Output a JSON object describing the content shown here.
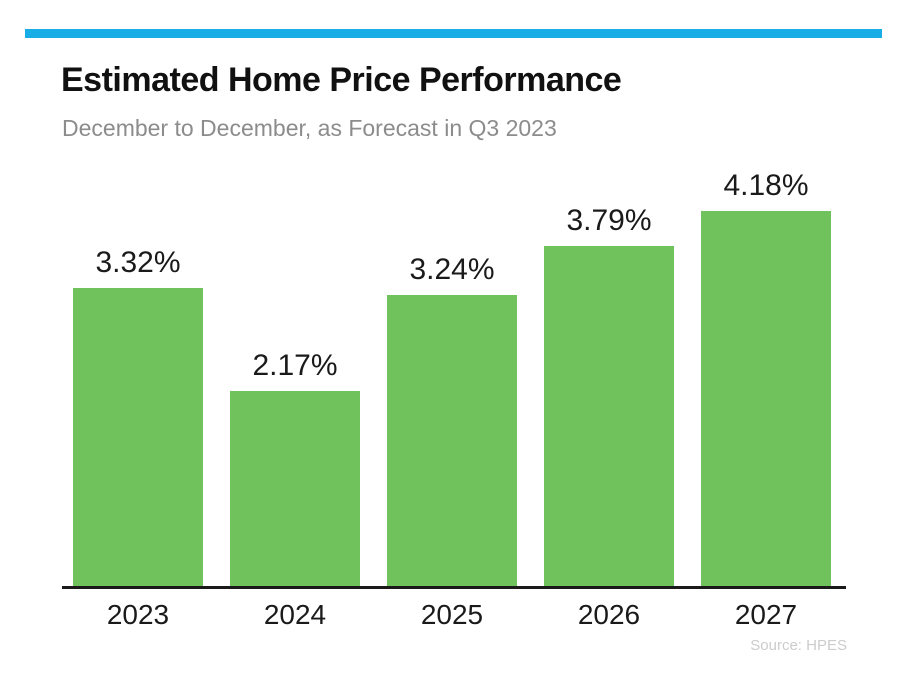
{
  "header": {
    "title": "Estimated Home Price Performance",
    "subtitle": "December to December, as Forecast in Q3 2023"
  },
  "chart_data": {
    "type": "bar",
    "categories": [
      "2023",
      "2024",
      "2025",
      "2026",
      "2027"
    ],
    "values": [
      3.32,
      2.17,
      3.24,
      3.79,
      4.18
    ],
    "value_labels": [
      "3.32%",
      "2.17%",
      "3.24%",
      "3.79%",
      "4.18%"
    ],
    "title": "Estimated Home Price Performance",
    "subtitle": "December to December, as Forecast in Q3 2023",
    "xlabel": "",
    "ylabel": "",
    "ylim": [
      0,
      4.6
    ],
    "grid": false,
    "legend": "none",
    "data_labels": true,
    "baseline": 0
  },
  "footer": {
    "source": "Source: HPES"
  },
  "colors": {
    "accent_blue": "#18ade6",
    "bar_green": "#6fc25c",
    "axis_black": "#1a1a1a",
    "title_black": "#111111",
    "subtitle_gray": "#8c8c8c",
    "source_gray": "#cccccc"
  }
}
